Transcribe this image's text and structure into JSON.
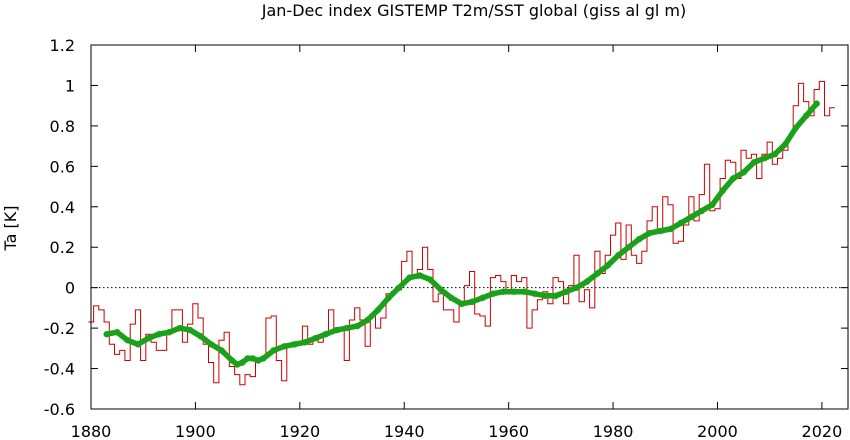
{
  "chart_data": {
    "type": "line",
    "title": "Jan-Dec index GISTEMP T2m/SST global (giss al gl m)",
    "xlabel": "",
    "ylabel": "Ta [K]",
    "xlim": [
      1880,
      2025
    ],
    "ylim": [
      -0.6,
      1.2
    ],
    "xticks": [
      1880,
      1900,
      1920,
      1940,
      1960,
      1980,
      2000,
      2020
    ],
    "xtick_labels": [
      "1880",
      "1900",
      "1920",
      "1940",
      "1960",
      "1980",
      "2000",
      "2020"
    ],
    "yticks": [
      -0.6,
      -0.4,
      -0.2,
      0,
      0.2,
      0.4,
      0.6,
      0.8,
      1,
      1.2
    ],
    "ytick_labels": [
      "-0.6",
      "-0.4",
      "-0.2",
      "0",
      "0.2",
      "0.4",
      "0.6",
      "0.8",
      "1",
      "1.2"
    ],
    "zero_line": true,
    "grid": false,
    "colors": {
      "annual": "#cc0000",
      "smoothed": "#1aa11a",
      "zero_line": "#000000"
    },
    "series": [
      {
        "style": "steps",
        "x": [
          1880,
          1881,
          1882,
          1883,
          1884,
          1885,
          1886,
          1887,
          1888,
          1889,
          1890,
          1891,
          1892,
          1893,
          1894,
          1895,
          1896,
          1897,
          1898,
          1899,
          1900,
          1901,
          1902,
          1903,
          1904,
          1905,
          1906,
          1907,
          1908,
          1909,
          1910,
          1911,
          1912,
          1913,
          1914,
          1915,
          1916,
          1917,
          1918,
          1919,
          1920,
          1921,
          1922,
          1923,
          1924,
          1925,
          1926,
          1927,
          1928,
          1929,
          1930,
          1931,
          1932,
          1933,
          1934,
          1935,
          1936,
          1937,
          1938,
          1939,
          1940,
          1941,
          1942,
          1943,
          1944,
          1945,
          1946,
          1947,
          1948,
          1949,
          1950,
          1951,
          1952,
          1953,
          1954,
          1955,
          1956,
          1957,
          1958,
          1959,
          1960,
          1961,
          1962,
          1963,
          1964,
          1965,
          1966,
          1967,
          1968,
          1969,
          1970,
          1971,
          1972,
          1973,
          1974,
          1975,
          1976,
          1977,
          1978,
          1979,
          1980,
          1981,
          1982,
          1983,
          1984,
          1985,
          1986,
          1987,
          1988,
          1989,
          1990,
          1991,
          1992,
          1993,
          1994,
          1995,
          1996,
          1997,
          1998,
          1999,
          2000,
          2001,
          2002,
          2003,
          2004,
          2005,
          2006,
          2007,
          2008,
          2009,
          2010,
          2011,
          2012,
          2013,
          2014,
          2015,
          2016,
          2017,
          2018,
          2019,
          2020,
          2021,
          2022
        ],
        "y": [
          -0.17,
          -0.09,
          -0.11,
          -0.17,
          -0.28,
          -0.33,
          -0.31,
          -0.36,
          -0.18,
          -0.11,
          -0.36,
          -0.23,
          -0.27,
          -0.31,
          -0.31,
          -0.22,
          -0.11,
          -0.11,
          -0.27,
          -0.18,
          -0.08,
          -0.15,
          -0.28,
          -0.37,
          -0.47,
          -0.26,
          -0.22,
          -0.39,
          -0.43,
          -0.48,
          -0.43,
          -0.44,
          -0.36,
          -0.35,
          -0.15,
          -0.14,
          -0.36,
          -0.46,
          -0.29,
          -0.27,
          -0.27,
          -0.19,
          -0.28,
          -0.26,
          -0.27,
          -0.22,
          -0.11,
          -0.22,
          -0.2,
          -0.36,
          -0.16,
          -0.1,
          -0.16,
          -0.29,
          -0.13,
          -0.2,
          -0.15,
          -0.03,
          -0.02,
          -0.01,
          0.13,
          0.18,
          0.06,
          0.09,
          0.2,
          0.09,
          -0.07,
          -0.03,
          -0.11,
          -0.11,
          -0.17,
          -0.07,
          0.01,
          0.08,
          -0.13,
          -0.14,
          -0.19,
          0.05,
          0.06,
          0.03,
          -0.02,
          0.06,
          0.03,
          0.05,
          -0.2,
          -0.11,
          -0.06,
          -0.02,
          -0.08,
          0.05,
          0.03,
          -0.08,
          0.01,
          0.16,
          -0.07,
          -0.01,
          -0.1,
          0.18,
          0.07,
          0.16,
          0.26,
          0.32,
          0.14,
          0.31,
          0.16,
          0.12,
          0.18,
          0.33,
          0.4,
          0.27,
          0.45,
          0.41,
          0.22,
          0.23,
          0.31,
          0.45,
          0.33,
          0.46,
          0.61,
          0.38,
          0.39,
          0.54,
          0.63,
          0.62,
          0.54,
          0.68,
          0.64,
          0.66,
          0.54,
          0.66,
          0.72,
          0.61,
          0.64,
          0.68,
          0.75,
          0.9,
          1.01,
          0.92,
          0.85,
          0.98,
          1.02,
          0.85,
          0.89
        ]
      },
      {
        "style": "smooth",
        "x": [
          1883,
          1885,
          1887,
          1889,
          1891,
          1893,
          1895,
          1897,
          1899,
          1901,
          1903,
          1905,
          1907,
          1908,
          1909,
          1910,
          1911,
          1912,
          1913,
          1915,
          1917,
          1919,
          1921,
          1923,
          1925,
          1927,
          1929,
          1931,
          1933,
          1935,
          1937,
          1939,
          1941,
          1943,
          1945,
          1947,
          1949,
          1951,
          1953,
          1955,
          1957,
          1959,
          1961,
          1963,
          1965,
          1967,
          1969,
          1971,
          1973,
          1975,
          1977,
          1979,
          1981,
          1983,
          1985,
          1987,
          1989,
          1991,
          1993,
          1995,
          1997,
          1999,
          2001,
          2003,
          2005,
          2007,
          2009,
          2011,
          2013,
          2015,
          2017,
          2019
        ],
        "y": [
          -0.23,
          -0.22,
          -0.26,
          -0.28,
          -0.25,
          -0.23,
          -0.22,
          -0.2,
          -0.21,
          -0.24,
          -0.28,
          -0.31,
          -0.36,
          -0.38,
          -0.37,
          -0.35,
          -0.35,
          -0.36,
          -0.35,
          -0.31,
          -0.29,
          -0.28,
          -0.27,
          -0.25,
          -0.23,
          -0.21,
          -0.2,
          -0.19,
          -0.16,
          -0.11,
          -0.05,
          0.0,
          0.05,
          0.06,
          0.04,
          -0.01,
          -0.05,
          -0.08,
          -0.07,
          -0.05,
          -0.03,
          -0.02,
          -0.02,
          -0.02,
          -0.03,
          -0.04,
          -0.04,
          -0.02,
          0.0,
          0.03,
          0.07,
          0.11,
          0.16,
          0.2,
          0.24,
          0.27,
          0.28,
          0.29,
          0.32,
          0.35,
          0.38,
          0.41,
          0.48,
          0.54,
          0.57,
          0.62,
          0.64,
          0.66,
          0.71,
          0.79,
          0.85,
          0.91
        ]
      }
    ]
  }
}
